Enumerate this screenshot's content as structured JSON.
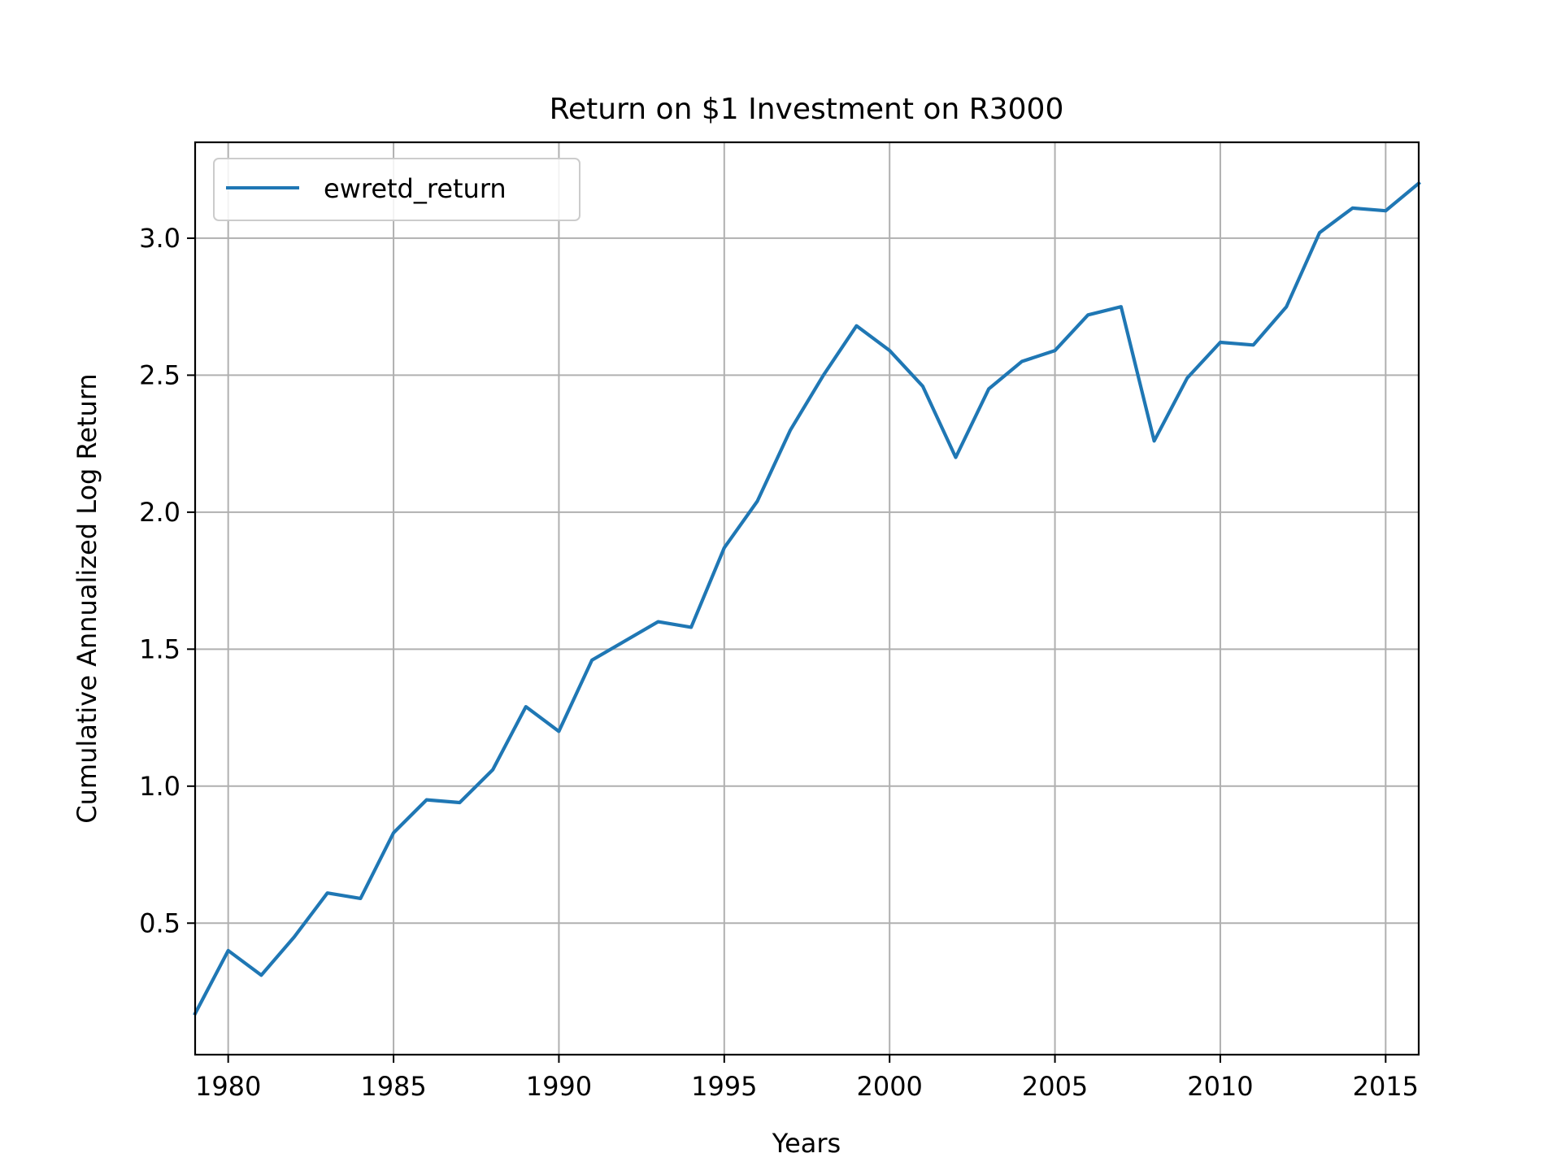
{
  "chart_data": {
    "type": "line",
    "title": "Return on $1 Investment on R3000",
    "xlabel": "Years",
    "ylabel": "Cumulative Annualized Log Return",
    "xlim": [
      1979,
      2016
    ],
    "ylim": [
      0.02,
      3.35
    ],
    "xticks": [
      1980,
      1985,
      1990,
      1995,
      2000,
      2005,
      2010,
      2015
    ],
    "xtick_labels": [
      "1980",
      "1985",
      "1990",
      "1995",
      "2000",
      "2005",
      "2010",
      "2015"
    ],
    "yticks": [
      0.5,
      1.0,
      1.5,
      2.0,
      2.5,
      3.0
    ],
    "ytick_labels": [
      "0.5",
      "1.0",
      "1.5",
      "2.0",
      "2.5",
      "3.0"
    ],
    "grid": true,
    "legend_position": "top-left",
    "series": [
      {
        "name": "ewretd_return",
        "color": "#1f77b4",
        "x": [
          1979,
          1980,
          1981,
          1982,
          1983,
          1984,
          1985,
          1986,
          1987,
          1988,
          1989,
          1990,
          1991,
          1992,
          1993,
          1994,
          1995,
          1996,
          1997,
          1998,
          1999,
          2000,
          2001,
          2002,
          2003,
          2004,
          2005,
          2006,
          2007,
          2008,
          2009,
          2010,
          2011,
          2012,
          2013,
          2014,
          2015,
          2016
        ],
        "y": [
          0.17,
          0.4,
          0.31,
          0.45,
          0.61,
          0.59,
          0.83,
          0.95,
          0.94,
          1.06,
          1.29,
          1.2,
          1.46,
          1.53,
          1.6,
          1.58,
          1.87,
          2.04,
          2.3,
          2.5,
          2.68,
          2.59,
          2.46,
          2.2,
          2.45,
          2.55,
          2.59,
          2.72,
          2.75,
          2.26,
          2.49,
          2.62,
          2.61,
          2.75,
          3.02,
          3.11,
          3.1,
          3.2
        ]
      }
    ]
  }
}
